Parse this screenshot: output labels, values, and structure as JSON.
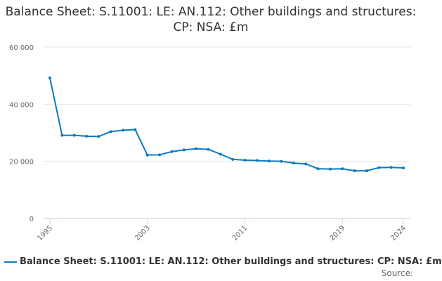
{
  "chart_data": {
    "type": "line",
    "title": "Balance Sheet: S.11001: LE: AN.112: Other buildings and structures: CP: NSA: £m",
    "x": [
      1995,
      1996,
      1997,
      1998,
      1999,
      2000,
      2001,
      2002,
      2003,
      2004,
      2005,
      2006,
      2007,
      2008,
      2009,
      2010,
      2011,
      2012,
      2013,
      2014,
      2015,
      2016,
      2017,
      2018,
      2019,
      2020,
      2021,
      2022,
      2023,
      2024
    ],
    "series": [
      {
        "name": "Balance Sheet: S.11001: LE: AN.112: Other buildings and structures: CP: NSA: £m",
        "values": [
          49200,
          29100,
          29100,
          28800,
          28700,
          30400,
          30900,
          31100,
          22200,
          22300,
          23400,
          24000,
          24400,
          24200,
          22500,
          20700,
          20400,
          20300,
          20100,
          20000,
          19400,
          19100,
          17400,
          17300,
          17400,
          16700,
          16700,
          17800,
          17900,
          17700
        ]
      }
    ],
    "ylim": [
      0,
      60000
    ],
    "yticks": [
      0,
      20000,
      40000,
      60000
    ],
    "ytick_labels": [
      "0",
      "20 000",
      "40 000",
      "60 000"
    ],
    "xtick_labels": [
      "1995",
      "2003",
      "2011",
      "2019",
      "2024"
    ],
    "grid": true,
    "legend_position": "bottom",
    "color": "#0a7bc1"
  },
  "source_label": "Source:"
}
